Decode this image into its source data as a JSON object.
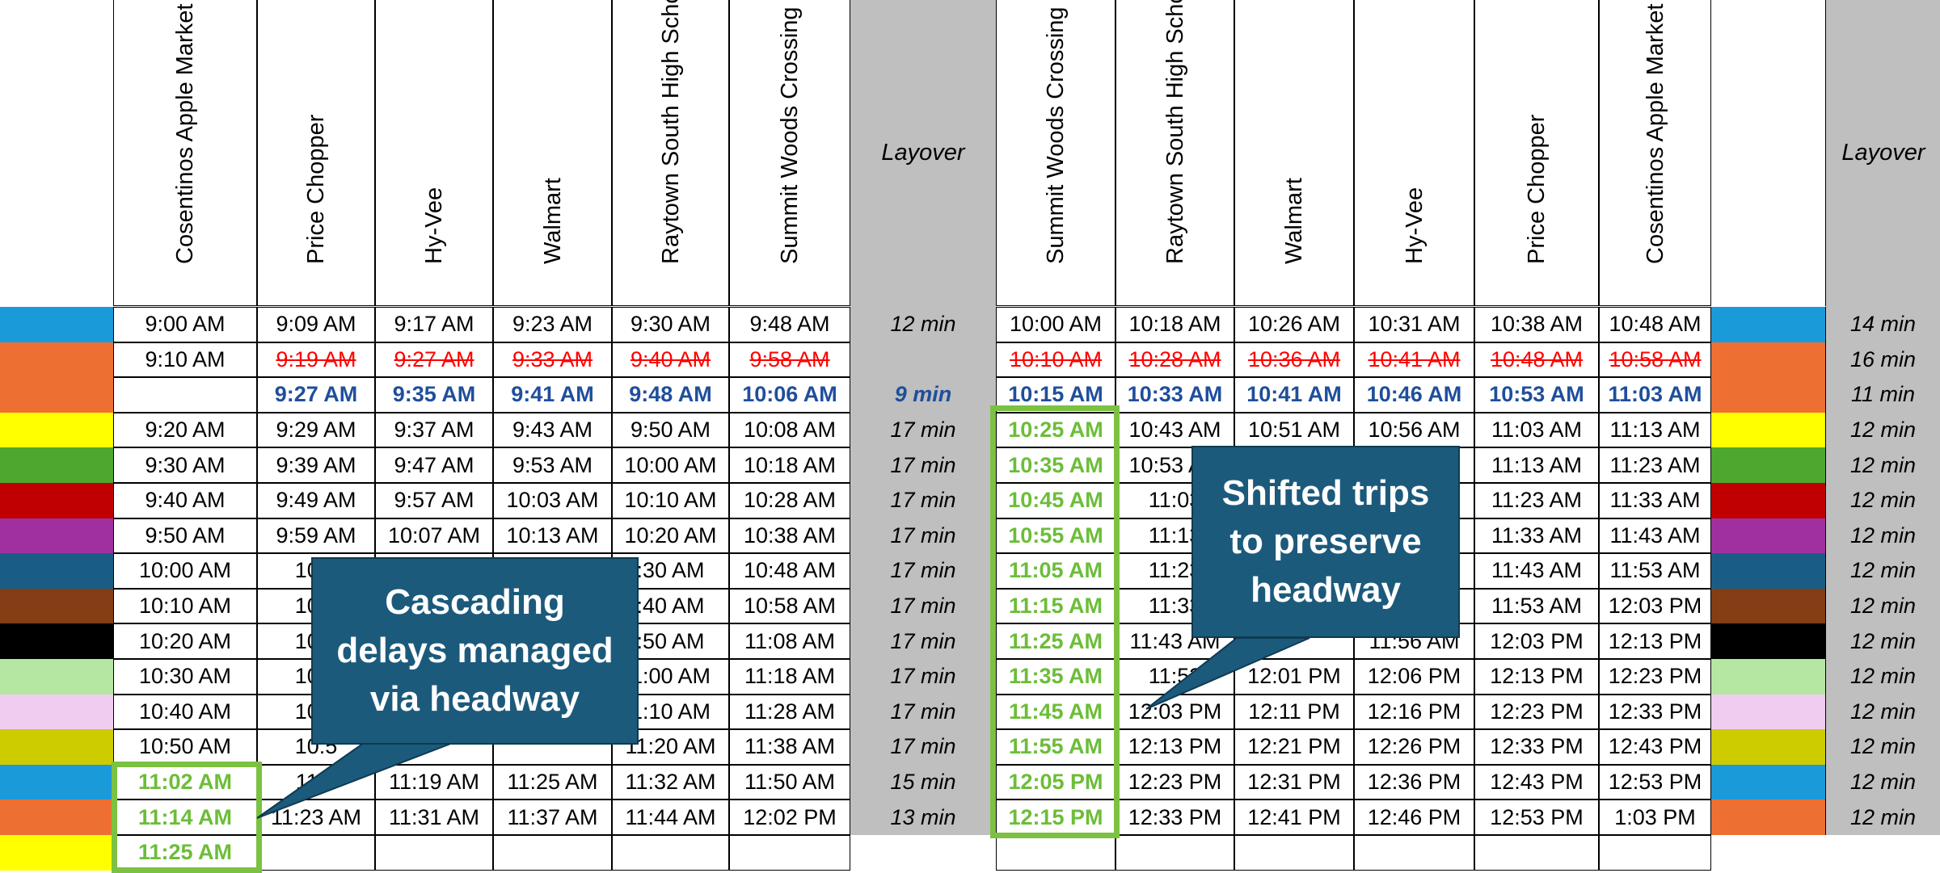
{
  "headers": {
    "outbound": [
      "Cosentinos Apple Market",
      "Price Chopper",
      "Hy-Vee",
      "Walmart",
      "Raytown South High School",
      "Summit Woods Crossing"
    ],
    "layover_label": "Layover",
    "inbound": [
      "Summit Woods Crossing",
      "Raytown South High School",
      "Walmart",
      "Hy-Vee",
      "Price Chopper",
      "Cosentinos Apple Market"
    ],
    "layover2_label": "Layover"
  },
  "rows": [
    {
      "color": "#1a9ad9",
      "out": [
        "9:00 AM",
        "9:09 AM",
        "9:17 AM",
        "9:23 AM",
        "9:30 AM",
        "9:48 AM"
      ],
      "layover": "12 min",
      "in": [
        "10:00 AM",
        "10:18 AM",
        "10:26 AM",
        "10:31 AM",
        "10:38 AM",
        "10:48 AM"
      ],
      "layover2": "14 min"
    },
    {
      "color": "#ed7032",
      "out": [
        "9:10 AM",
        "9:19 AM",
        "9:27 AM",
        "9:33 AM",
        "9:40 AM",
        "9:58 AM"
      ],
      "layover": "",
      "in": [
        "10:10 AM",
        "10:28 AM",
        "10:36 AM",
        "10:41 AM",
        "10:48 AM",
        "10:58 AM"
      ],
      "layover2": "16 min"
    },
    {
      "color": "#ed7032",
      "out": [
        "",
        "9:27 AM",
        "9:35 AM",
        "9:41 AM",
        "9:48 AM",
        "10:06 AM"
      ],
      "layover": "9 min",
      "in": [
        "10:15 AM",
        "10:33 AM",
        "10:41 AM",
        "10:46 AM",
        "10:53 AM",
        "11:03 AM"
      ],
      "layover2": "11 min"
    },
    {
      "color": "#ffff00",
      "out": [
        "9:20 AM",
        "9:29 AM",
        "9:37 AM",
        "9:43 AM",
        "9:50 AM",
        "10:08 AM"
      ],
      "layover": "17 min",
      "in": [
        "10:25 AM",
        "10:43 AM",
        "10:51 AM",
        "10:56 AM",
        "11:03 AM",
        "11:13 AM"
      ],
      "layover2": "12 min"
    },
    {
      "color": "#4ea72e",
      "out": [
        "9:30 AM",
        "9:39 AM",
        "9:47 AM",
        "9:53 AM",
        "10:00 AM",
        "10:18 AM"
      ],
      "layover": "17 min",
      "in": [
        "10:35 AM",
        "10:53 AM",
        "",
        "",
        "11:13 AM",
        "11:23 AM"
      ],
      "layover2": "12 min"
    },
    {
      "color": "#c00000",
      "out": [
        "9:40 AM",
        "9:49 AM",
        "9:57 AM",
        "10:03 AM",
        "10:10 AM",
        "10:28 AM"
      ],
      "layover": "17 min",
      "in": [
        "10:45 AM",
        "11:03",
        "",
        "",
        "11:23 AM",
        "11:33 AM"
      ],
      "layover2": "12 min"
    },
    {
      "color": "#a0309f",
      "out": [
        "9:50 AM",
        "9:59 AM",
        "10:07 AM",
        "10:13 AM",
        "10:20 AM",
        "10:38 AM"
      ],
      "layover": "17 min",
      "in": [
        "10:55 AM",
        "11:13",
        "",
        "",
        "11:33 AM",
        "11:43 AM"
      ],
      "layover2": "12 min"
    },
    {
      "color": "#1a5d84",
      "out": [
        "10:00 AM",
        "10:0",
        "",
        "",
        ":30 AM",
        "10:48 AM"
      ],
      "layover": "17 min",
      "in": [
        "11:05 AM",
        "11:23",
        "",
        "",
        "11:43 AM",
        "11:53 AM"
      ],
      "layover2": "12 min"
    },
    {
      "color": "#843d14",
      "out": [
        "10:10 AM",
        "10:1",
        "",
        "",
        ":40 AM",
        "10:58 AM"
      ],
      "layover": "17 min",
      "in": [
        "11:15 AM",
        "11:33",
        "",
        "",
        "11:53 AM",
        "12:03 PM"
      ],
      "layover2": "12 min"
    },
    {
      "color": "#000000",
      "out": [
        "10:20 AM",
        "10:2",
        "",
        "",
        ":50 AM",
        "11:08 AM"
      ],
      "layover": "17 min",
      "in": [
        "11:25 AM",
        "11:43 AM",
        "",
        "11:56 AM",
        "12:03 PM",
        "12:13 PM"
      ],
      "layover2": "12 min"
    },
    {
      "color": "#b5e6a2",
      "out": [
        "10:30 AM",
        "10:3",
        "",
        "",
        "1:00 AM",
        "11:18 AM"
      ],
      "layover": "17 min",
      "in": [
        "11:35 AM",
        "11:53",
        "12:01 PM",
        "12:06 PM",
        "12:13 PM",
        "12:23 PM"
      ],
      "layover2": "12 min"
    },
    {
      "color": "#f0cdf0",
      "out": [
        "10:40 AM",
        "10:4",
        "",
        "",
        "1:10 AM",
        "11:28 AM"
      ],
      "layover": "17 min",
      "in": [
        "11:45 AM",
        "12:03 PM",
        "12:11 PM",
        "12:16 PM",
        "12:23 PM",
        "12:33 PM"
      ],
      "layover2": "12 min"
    },
    {
      "color": "#cccc00",
      "out": [
        "10:50 AM",
        "10:5",
        "",
        "",
        "11:20 AM",
        "11:38 AM"
      ],
      "layover": "17 min",
      "in": [
        "11:55 AM",
        "12:13 PM",
        "12:21 PM",
        "12:26 PM",
        "12:33 PM",
        "12:43 PM"
      ],
      "layover2": "12 min"
    },
    {
      "color": "#1a9ad9",
      "out": [
        "11:02 AM",
        "11:1",
        "11:19 AM",
        "11:25 AM",
        "11:32 AM",
        "11:50 AM"
      ],
      "layover": "15 min",
      "in": [
        "12:05 PM",
        "12:23 PM",
        "12:31 PM",
        "12:36 PM",
        "12:43 PM",
        "12:53 PM"
      ],
      "layover2": "12 min"
    },
    {
      "color": "#ed7032",
      "out": [
        "11:14 AM",
        "11:23 AM",
        "11:31 AM",
        "11:37 AM",
        "11:44 AM",
        "12:02 PM"
      ],
      "layover": "13 min",
      "in": [
        "12:15 PM",
        "12:33 PM",
        "12:41 PM",
        "12:46 PM",
        "12:53 PM",
        "1:03 PM"
      ],
      "layover2": "12 min"
    },
    {
      "color": "#ffff00",
      "out": [
        "11:25 AM",
        "",
        "",
        "",
        "",
        ""
      ],
      "layover": "",
      "in": [
        "",
        "",
        "",
        "",
        "",
        ""
      ],
      "layover2": ""
    }
  ],
  "callouts": {
    "left": "Cascading delays managed via headway",
    "right": "Shifted trips to preserve headway"
  }
}
